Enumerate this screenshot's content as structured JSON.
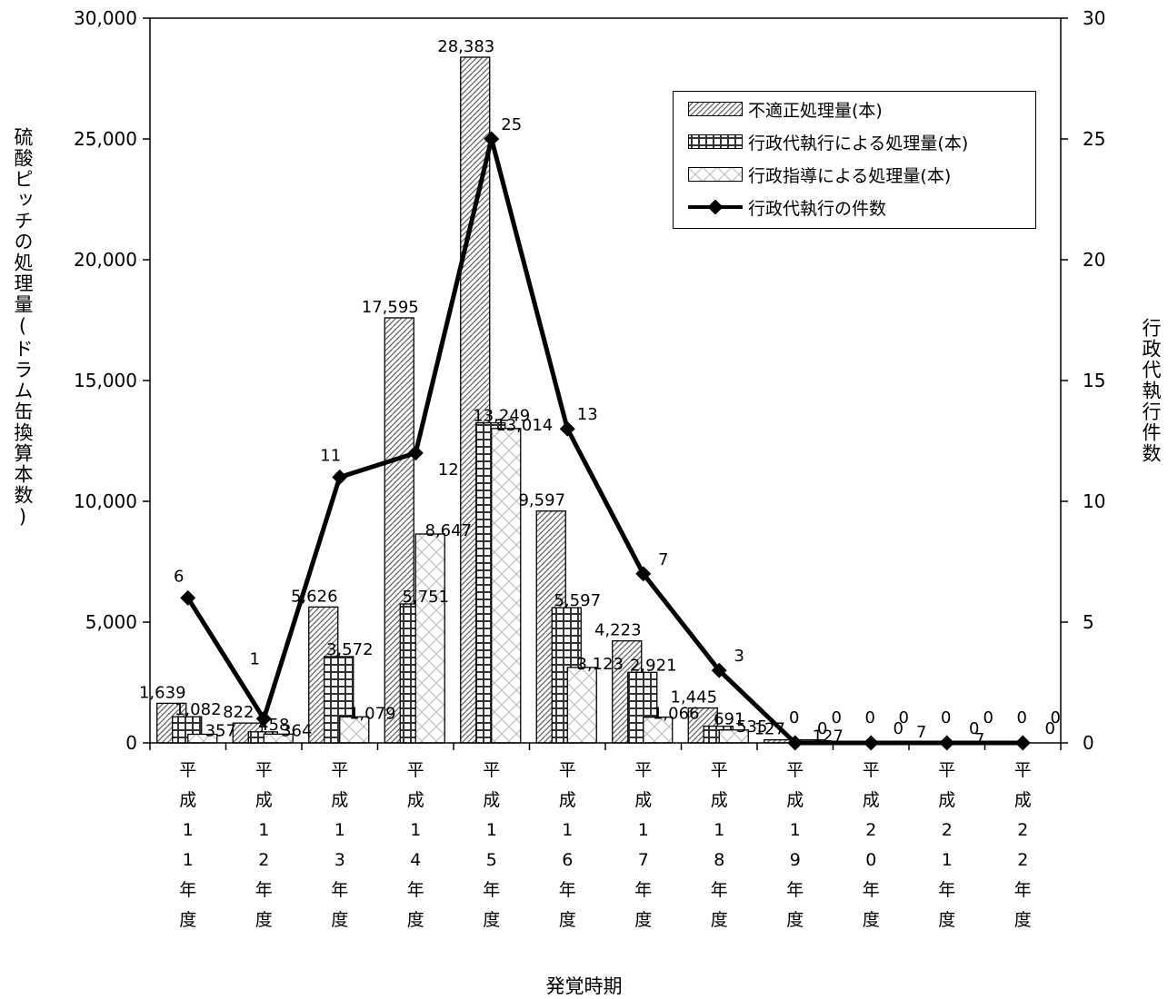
{
  "chart_data": {
    "type": "bar",
    "title": "",
    "xlabel": "発覚時期",
    "ylabel": "硫酸ピッチの処理量(ドラム缶換算本数)",
    "y2label": "行政代執行件数",
    "ylim": [
      0,
      30000
    ],
    "y2lim": [
      0,
      30
    ],
    "yticks": [
      "0",
      "5,000",
      "10,000",
      "15,000",
      "20,000",
      "25,000",
      "30,000"
    ],
    "y2ticks": [
      "0",
      "5",
      "10",
      "15",
      "20",
      "25",
      "30"
    ],
    "grid": false,
    "legend_position": "top-right",
    "categories": [
      "平成11年度",
      "平成12年度",
      "平成13年度",
      "平成14年度",
      "平成15年度",
      "平成16年度",
      "平成17年度",
      "平成18年度",
      "平成19年度",
      "平成20年度",
      "平成21年度",
      "平成22年度"
    ],
    "series": [
      {
        "name": "不適正処理量(本)",
        "type": "bar",
        "axis": "left",
        "values": [
          1639,
          822,
          5626,
          17595,
          28383,
          9597,
          4223,
          1445,
          127,
          0,
          7,
          0
        ],
        "labels": [
          "1,639",
          "822",
          "5,626",
          "17,595",
          "28,383",
          "9,597",
          "4,223",
          "1,445",
          "127",
          "0",
          "7",
          "0"
        ]
      },
      {
        "name": "行政代執行による処理量(本)",
        "type": "bar",
        "axis": "left",
        "values": [
          1082,
          458,
          3572,
          5751,
          13249,
          5597,
          2921,
          691,
          0,
          0,
          0,
          0
        ],
        "labels": [
          "1,082",
          "458",
          "3,572",
          "5,751",
          "13,249",
          "5,597",
          "2,921",
          "691",
          "0",
          "0",
          "0",
          "0"
        ]
      },
      {
        "name": "行政指導による処理量(本)",
        "type": "bar",
        "axis": "left",
        "values": [
          357,
          364,
          1079,
          8647,
          13014,
          3123,
          1066,
          535,
          127,
          0,
          7,
          0
        ],
        "labels": [
          "357",
          "364",
          "1,079",
          "8,647",
          "13,014",
          "3,123",
          "1,066",
          "535",
          "127",
          "0",
          "7",
          "0"
        ]
      },
      {
        "name": "行政代執行の件数",
        "type": "line",
        "axis": "right",
        "values": [
          6,
          1,
          11,
          12,
          25,
          13,
          7,
          3,
          0,
          0,
          0,
          0
        ],
        "labels": [
          "6",
          "1",
          "11",
          "12",
          "25",
          "13",
          "7",
          "3",
          "0",
          "0",
          "0",
          "0"
        ]
      }
    ],
    "colors": {
      "line": "#000000",
      "bar_fill": "#ffffff",
      "hatch": "#555555"
    }
  }
}
